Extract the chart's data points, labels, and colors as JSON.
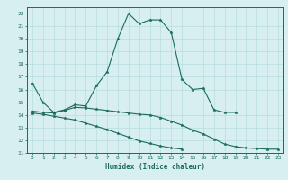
{
  "xlabel": "Humidex (Indice chaleur)",
  "x": [
    0,
    1,
    2,
    3,
    4,
    5,
    6,
    7,
    8,
    9,
    10,
    11,
    12,
    13,
    14,
    15,
    16,
    17,
    18,
    19,
    20,
    21,
    22,
    23
  ],
  "line1": [
    16.5,
    15.0,
    14.2,
    14.4,
    14.8,
    14.7,
    16.3,
    17.4,
    20.0,
    22.0,
    21.2,
    21.5,
    21.5,
    20.5,
    16.8,
    16.0,
    16.1,
    14.4,
    14.2,
    14.2,
    null,
    null,
    null,
    null
  ],
  "line2": [
    14.3,
    14.2,
    14.15,
    14.35,
    14.6,
    14.55,
    14.45,
    14.35,
    14.25,
    14.15,
    14.05,
    14.0,
    13.8,
    13.5,
    13.2,
    12.8,
    12.5,
    12.1,
    11.7,
    11.5,
    11.4,
    11.35,
    11.3,
    11.3
  ],
  "line3": [
    14.15,
    14.05,
    13.9,
    13.75,
    13.6,
    13.35,
    13.1,
    12.85,
    12.55,
    12.25,
    11.95,
    11.75,
    11.55,
    11.4,
    11.3,
    null,
    null,
    null,
    null,
    null,
    null,
    null,
    null,
    null
  ],
  "line_color": "#1a6b5a",
  "bg_color": "#d8eff0",
  "grid_color": "#b8dde0",
  "ylim": [
    11,
    22.5
  ],
  "xlim": [
    -0.5,
    23.5
  ],
  "yticks": [
    11,
    12,
    13,
    14,
    15,
    16,
    17,
    18,
    19,
    20,
    21,
    22
  ],
  "xticks": [
    0,
    1,
    2,
    3,
    4,
    5,
    6,
    7,
    8,
    9,
    10,
    11,
    12,
    13,
    14,
    15,
    16,
    17,
    18,
    19,
    20,
    21,
    22,
    23
  ]
}
